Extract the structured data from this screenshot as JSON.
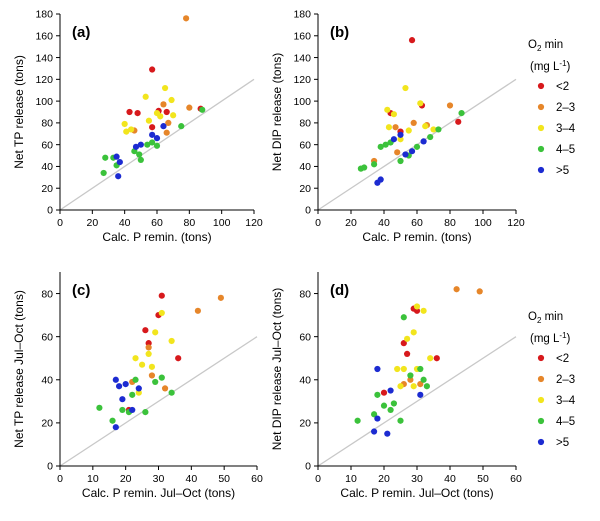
{
  "colors": {
    "lt2": "#d7191c",
    "2to3": "#e6862a",
    "3to4": "#f2e51d",
    "4to5": "#3bc23b",
    "gt5": "#1c2bd1",
    "oneone": "#c8c8c8"
  },
  "legend": {
    "title_sym": "O",
    "title_sub": "2",
    "title_rest": " min",
    "unit_pre": "(mg L",
    "unit_sup": "-1",
    "unit_post": ")",
    "items": [
      {
        "label": "<2",
        "key": "lt2"
      },
      {
        "label": "2–3",
        "key": "2to3"
      },
      {
        "label": "3–4",
        "key": "3to4"
      },
      {
        "label": "4–5",
        "key": "4to5"
      },
      {
        "label": ">5",
        "key": "gt5"
      }
    ]
  },
  "chart_data": [
    {
      "type": "scatter",
      "panel_label": "(a)",
      "xlabel": "Calc. P remin. (tons)",
      "ylabel": "Net TP release (tons)",
      "xlim": [
        0,
        120
      ],
      "ylim": [
        0,
        180
      ],
      "xticks": [
        "0",
        "20",
        "40",
        "60",
        "80",
        "100",
        "120"
      ],
      "yticks": [
        "0",
        "20",
        "40",
        "60",
        "80",
        "100",
        "120",
        "140",
        "160",
        "180"
      ],
      "one_to_one_line": true,
      "points": [
        {
          "x": 78,
          "y": 176,
          "c": "2to3"
        },
        {
          "x": 57,
          "y": 129,
          "c": "lt2"
        },
        {
          "x": 43,
          "y": 90,
          "c": "lt2"
        },
        {
          "x": 48,
          "y": 89,
          "c": "lt2"
        },
        {
          "x": 61,
          "y": 91,
          "c": "lt2"
        },
        {
          "x": 66,
          "y": 90,
          "c": "lt2"
        },
        {
          "x": 57,
          "y": 76,
          "c": "lt2"
        },
        {
          "x": 87,
          "y": 93,
          "c": "lt2"
        },
        {
          "x": 46,
          "y": 73,
          "c": "2to3"
        },
        {
          "x": 64,
          "y": 97,
          "c": "2to3"
        },
        {
          "x": 67,
          "y": 80,
          "c": "2to3"
        },
        {
          "x": 80,
          "y": 94,
          "c": "2to3"
        },
        {
          "x": 66,
          "y": 71,
          "c": "2to3"
        },
        {
          "x": 40,
          "y": 79,
          "c": "3to4"
        },
        {
          "x": 41,
          "y": 72,
          "c": "3to4"
        },
        {
          "x": 44,
          "y": 74,
          "c": "3to4"
        },
        {
          "x": 53,
          "y": 104,
          "c": "3to4"
        },
        {
          "x": 60,
          "y": 89,
          "c": "3to4"
        },
        {
          "x": 62,
          "y": 86,
          "c": "3to4"
        },
        {
          "x": 65,
          "y": 112,
          "c": "3to4"
        },
        {
          "x": 69,
          "y": 101,
          "c": "3to4"
        },
        {
          "x": 70,
          "y": 87,
          "c": "3to4"
        },
        {
          "x": 55,
          "y": 82,
          "c": "3to4"
        },
        {
          "x": 27,
          "y": 34,
          "c": "4to5"
        },
        {
          "x": 28,
          "y": 48,
          "c": "4to5"
        },
        {
          "x": 33,
          "y": 48,
          "c": "4to5"
        },
        {
          "x": 35,
          "y": 41,
          "c": "4to5"
        },
        {
          "x": 46,
          "y": 54,
          "c": "4to5"
        },
        {
          "x": 49,
          "y": 51,
          "c": "4to5"
        },
        {
          "x": 50,
          "y": 46,
          "c": "4to5"
        },
        {
          "x": 54,
          "y": 60,
          "c": "4to5"
        },
        {
          "x": 57,
          "y": 62,
          "c": "4to5"
        },
        {
          "x": 60,
          "y": 59,
          "c": "4to5"
        },
        {
          "x": 75,
          "y": 77,
          "c": "4to5"
        },
        {
          "x": 88,
          "y": 92,
          "c": "4to5"
        },
        {
          "x": 35,
          "y": 49,
          "c": "gt5"
        },
        {
          "x": 36,
          "y": 31,
          "c": "gt5"
        },
        {
          "x": 37,
          "y": 44,
          "c": "gt5"
        },
        {
          "x": 47,
          "y": 58,
          "c": "gt5"
        },
        {
          "x": 50,
          "y": 60,
          "c": "gt5"
        },
        {
          "x": 57,
          "y": 69,
          "c": "gt5"
        },
        {
          "x": 60,
          "y": 66,
          "c": "gt5"
        },
        {
          "x": 64,
          "y": 77,
          "c": "gt5"
        }
      ]
    },
    {
      "type": "scatter",
      "panel_label": "(b)",
      "xlabel": "Calc. P remin. (tons)",
      "ylabel": "Net DIP release (tons)",
      "xlim": [
        0,
        120
      ],
      "ylim": [
        0,
        180
      ],
      "xticks": [
        "0",
        "20",
        "40",
        "60",
        "80",
        "100",
        "120"
      ],
      "yticks": [
        "0",
        "20",
        "40",
        "60",
        "80",
        "100",
        "120",
        "140",
        "160",
        "180"
      ],
      "one_to_one_line": true,
      "points": [
        {
          "x": 57,
          "y": 156,
          "c": "lt2"
        },
        {
          "x": 44,
          "y": 89,
          "c": "lt2"
        },
        {
          "x": 50,
          "y": 72,
          "c": "lt2"
        },
        {
          "x": 63,
          "y": 96,
          "c": "lt2"
        },
        {
          "x": 85,
          "y": 81,
          "c": "lt2"
        },
        {
          "x": 34,
          "y": 45,
          "c": "2to3"
        },
        {
          "x": 47,
          "y": 76,
          "c": "2to3"
        },
        {
          "x": 48,
          "y": 53,
          "c": "2to3"
        },
        {
          "x": 58,
          "y": 80,
          "c": "2to3"
        },
        {
          "x": 66,
          "y": 78,
          "c": "2to3"
        },
        {
          "x": 80,
          "y": 96,
          "c": "2to3"
        },
        {
          "x": 42,
          "y": 92,
          "c": "3to4"
        },
        {
          "x": 43,
          "y": 76,
          "c": "3to4"
        },
        {
          "x": 46,
          "y": 88,
          "c": "3to4"
        },
        {
          "x": 53,
          "y": 112,
          "c": "3to4"
        },
        {
          "x": 55,
          "y": 73,
          "c": "3to4"
        },
        {
          "x": 62,
          "y": 98,
          "c": "3to4"
        },
        {
          "x": 65,
          "y": 77,
          "c": "3to4"
        },
        {
          "x": 70,
          "y": 74,
          "c": "3to4"
        },
        {
          "x": 50,
          "y": 65,
          "c": "3to4"
        },
        {
          "x": 26,
          "y": 38,
          "c": "4to5"
        },
        {
          "x": 28,
          "y": 39,
          "c": "4to5"
        },
        {
          "x": 34,
          "y": 42,
          "c": "4to5"
        },
        {
          "x": 38,
          "y": 58,
          "c": "4to5"
        },
        {
          "x": 41,
          "y": 60,
          "c": "4to5"
        },
        {
          "x": 44,
          "y": 62,
          "c": "4to5"
        },
        {
          "x": 50,
          "y": 45,
          "c": "4to5"
        },
        {
          "x": 55,
          "y": 50,
          "c": "4to5"
        },
        {
          "x": 60,
          "y": 58,
          "c": "4to5"
        },
        {
          "x": 68,
          "y": 67,
          "c": "4to5"
        },
        {
          "x": 73,
          "y": 74,
          "c": "4to5"
        },
        {
          "x": 87,
          "y": 89,
          "c": "4to5"
        },
        {
          "x": 36,
          "y": 25,
          "c": "gt5"
        },
        {
          "x": 38,
          "y": 28,
          "c": "gt5"
        },
        {
          "x": 46,
          "y": 65,
          "c": "gt5"
        },
        {
          "x": 50,
          "y": 69,
          "c": "gt5"
        },
        {
          "x": 53,
          "y": 51,
          "c": "gt5"
        },
        {
          "x": 57,
          "y": 54,
          "c": "gt5"
        },
        {
          "x": 64,
          "y": 63,
          "c": "gt5"
        }
      ]
    },
    {
      "type": "scatter",
      "panel_label": "(c)",
      "xlabel": "Calc. P remin. Jul–Oct (tons)",
      "ylabel": "Net TP release Jul–Oct (tons)",
      "xlim": [
        0,
        60
      ],
      "ylim": [
        0,
        90
      ],
      "xticks": [
        "0",
        "10",
        "20",
        "30",
        "40",
        "50",
        "60"
      ],
      "yticks": [
        "0",
        "20",
        "40",
        "60",
        "80"
      ],
      "one_to_one_line": true,
      "points": [
        {
          "x": 31,
          "y": 79,
          "c": "lt2"
        },
        {
          "x": 30,
          "y": 70,
          "c": "lt2"
        },
        {
          "x": 26,
          "y": 63,
          "c": "lt2"
        },
        {
          "x": 27,
          "y": 57,
          "c": "lt2"
        },
        {
          "x": 36,
          "y": 50,
          "c": "lt2"
        },
        {
          "x": 21,
          "y": 26,
          "c": "lt2"
        },
        {
          "x": 49,
          "y": 78,
          "c": "2to3"
        },
        {
          "x": 42,
          "y": 72,
          "c": "2to3"
        },
        {
          "x": 27,
          "y": 55,
          "c": "2to3"
        },
        {
          "x": 22,
          "y": 39,
          "c": "2to3"
        },
        {
          "x": 28,
          "y": 42,
          "c": "2to3"
        },
        {
          "x": 32,
          "y": 36,
          "c": "2to3"
        },
        {
          "x": 31,
          "y": 71,
          "c": "3to4"
        },
        {
          "x": 23,
          "y": 50,
          "c": "3to4"
        },
        {
          "x": 25,
          "y": 47,
          "c": "3to4"
        },
        {
          "x": 27,
          "y": 52,
          "c": "3to4"
        },
        {
          "x": 29,
          "y": 62,
          "c": "3to4"
        },
        {
          "x": 34,
          "y": 58,
          "c": "3to4"
        },
        {
          "x": 28,
          "y": 46,
          "c": "3to4"
        },
        {
          "x": 24,
          "y": 34,
          "c": "3to4"
        },
        {
          "x": 12,
          "y": 27,
          "c": "4to5"
        },
        {
          "x": 16,
          "y": 21,
          "c": "4to5"
        },
        {
          "x": 19,
          "y": 26,
          "c": "4to5"
        },
        {
          "x": 22,
          "y": 33,
          "c": "4to5"
        },
        {
          "x": 23,
          "y": 40,
          "c": "4to5"
        },
        {
          "x": 26,
          "y": 25,
          "c": "4to5"
        },
        {
          "x": 29,
          "y": 39,
          "c": "4to5"
        },
        {
          "x": 31,
          "y": 41,
          "c": "4to5"
        },
        {
          "x": 34,
          "y": 34,
          "c": "4to5"
        },
        {
          "x": 21,
          "y": 25,
          "c": "4to5"
        },
        {
          "x": 17,
          "y": 40,
          "c": "gt5"
        },
        {
          "x": 18,
          "y": 37,
          "c": "gt5"
        },
        {
          "x": 19,
          "y": 31,
          "c": "gt5"
        },
        {
          "x": 20,
          "y": 38,
          "c": "gt5"
        },
        {
          "x": 22,
          "y": 26,
          "c": "gt5"
        },
        {
          "x": 24,
          "y": 36,
          "c": "gt5"
        },
        {
          "x": 17,
          "y": 18,
          "c": "gt5"
        }
      ]
    },
    {
      "type": "scatter",
      "panel_label": "(d)",
      "xlabel": "Calc. P remin. Jul–Oct (tons)",
      "ylabel": "Net DIP release Jul–Oct (tons)",
      "xlim": [
        0,
        60
      ],
      "ylim": [
        0,
        90
      ],
      "xticks": [
        "0",
        "10",
        "20",
        "30",
        "40",
        "50",
        "60"
      ],
      "yticks": [
        "0",
        "20",
        "40",
        "60",
        "80"
      ],
      "one_to_one_line": true,
      "points": [
        {
          "x": 29,
          "y": 73,
          "c": "lt2"
        },
        {
          "x": 30,
          "y": 72,
          "c": "lt2"
        },
        {
          "x": 26,
          "y": 57,
          "c": "lt2"
        },
        {
          "x": 27,
          "y": 52,
          "c": "lt2"
        },
        {
          "x": 36,
          "y": 50,
          "c": "lt2"
        },
        {
          "x": 20,
          "y": 34,
          "c": "lt2"
        },
        {
          "x": 42,
          "y": 82,
          "c": "2to3"
        },
        {
          "x": 49,
          "y": 81,
          "c": "2to3"
        },
        {
          "x": 28,
          "y": 40,
          "c": "2to3"
        },
        {
          "x": 26,
          "y": 38,
          "c": "2to3"
        },
        {
          "x": 31,
          "y": 38,
          "c": "2to3"
        },
        {
          "x": 30,
          "y": 74,
          "c": "3to4"
        },
        {
          "x": 32,
          "y": 72,
          "c": "3to4"
        },
        {
          "x": 29,
          "y": 62,
          "c": "3to4"
        },
        {
          "x": 27,
          "y": 59,
          "c": "3to4"
        },
        {
          "x": 24,
          "y": 45,
          "c": "3to4"
        },
        {
          "x": 26,
          "y": 45,
          "c": "3to4"
        },
        {
          "x": 30,
          "y": 45,
          "c": "3to4"
        },
        {
          "x": 34,
          "y": 50,
          "c": "3to4"
        },
        {
          "x": 25,
          "y": 37,
          "c": "3to4"
        },
        {
          "x": 29,
          "y": 37,
          "c": "3to4"
        },
        {
          "x": 12,
          "y": 21,
          "c": "4to5"
        },
        {
          "x": 17,
          "y": 24,
          "c": "4to5"
        },
        {
          "x": 18,
          "y": 33,
          "c": "4to5"
        },
        {
          "x": 20,
          "y": 28,
          "c": "4to5"
        },
        {
          "x": 22,
          "y": 26,
          "c": "4to5"
        },
        {
          "x": 23,
          "y": 29,
          "c": "4to5"
        },
        {
          "x": 26,
          "y": 69,
          "c": "4to5"
        },
        {
          "x": 28,
          "y": 42,
          "c": "4to5"
        },
        {
          "x": 31,
          "y": 45,
          "c": "4to5"
        },
        {
          "x": 32,
          "y": 40,
          "c": "4to5"
        },
        {
          "x": 33,
          "y": 37,
          "c": "4to5"
        },
        {
          "x": 25,
          "y": 21,
          "c": "4to5"
        },
        {
          "x": 17,
          "y": 16,
          "c": "gt5"
        },
        {
          "x": 18,
          "y": 45,
          "c": "gt5"
        },
        {
          "x": 21,
          "y": 15,
          "c": "gt5"
        },
        {
          "x": 22,
          "y": 35,
          "c": "gt5"
        },
        {
          "x": 31,
          "y": 33,
          "c": "gt5"
        },
        {
          "x": 18,
          "y": 22,
          "c": "gt5"
        }
      ]
    }
  ]
}
